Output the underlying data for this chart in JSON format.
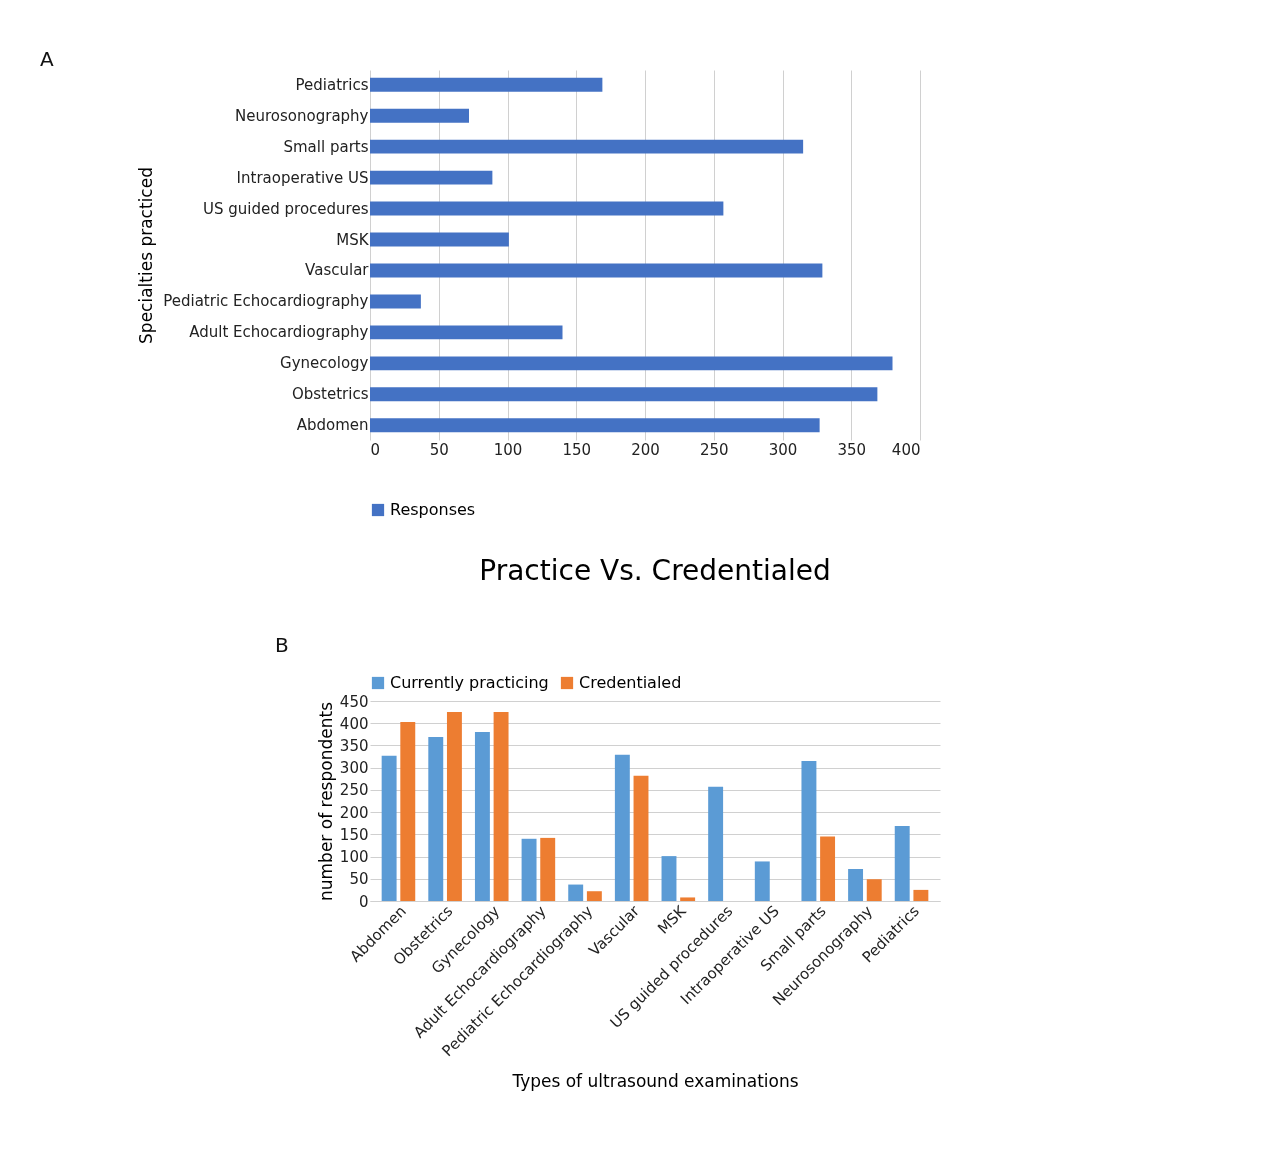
{
  "chart_data": [
    {
      "type": "bar",
      "orientation": "horizontal",
      "ylabel": "Specialties practiced",
      "annotations": [
        "A"
      ],
      "categories": [
        "Pediatrics",
        "Neurosonography",
        "Small parts",
        "Intraoperative US",
        "US guided procedures",
        "MSK",
        "Vascular",
        "Pediatric Echocardiography",
        "Adult Echocardiography",
        "Gynecology",
        "Obstetrics",
        "Abdomen"
      ],
      "series": [
        {
          "name": "Responses",
          "color": "#4472c4",
          "values": [
            169,
            72,
            315,
            89,
            257,
            101,
            329,
            37,
            140,
            380,
            369,
            327
          ]
        }
      ],
      "xlim": [
        0,
        400
      ],
      "xticks": [
        0,
        50,
        100,
        150,
        200,
        250,
        300,
        350,
        400
      ],
      "grid": "x",
      "legend": "bottom"
    },
    {
      "type": "bar",
      "title": "Practice Vs. Credentialed",
      "xlabel": "Types of ultrasound examinations",
      "ylabel": "number of respondents",
      "annotations": [
        "B"
      ],
      "categories": [
        "Abdomen",
        "Obstetrics",
        "Gynecology",
        "Adult Echocardiography",
        "Pediatric Echocardiography",
        "Vascular",
        "MSK",
        "US guided procedures",
        "Intraoperative US",
        "Small parts",
        "Neurosonography",
        "Pediatrics"
      ],
      "series": [
        {
          "name": "Currently practicing",
          "color": "#5b9bd5",
          "values": [
            327,
            369,
            380,
            140,
            37,
            329,
            101,
            257,
            89,
            315,
            72,
            169
          ]
        },
        {
          "name": "Credentialed",
          "color": "#ed7d31",
          "values": [
            403,
            425,
            425,
            142,
            22,
            282,
            8,
            null,
            null,
            145,
            49,
            25
          ]
        }
      ],
      "ylim": [
        0,
        450
      ],
      "yticks": [
        0,
        50,
        100,
        150,
        200,
        250,
        300,
        350,
        400,
        450
      ],
      "grid": "y",
      "legend": "top"
    }
  ]
}
